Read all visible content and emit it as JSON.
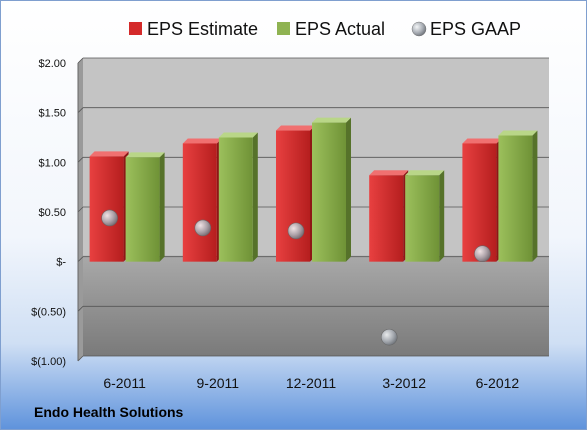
{
  "company": "Endo Health Solutions",
  "chart_data": {
    "type": "bar",
    "categories": [
      "6-2011",
      "9-2011",
      "12-2011",
      "3-2012",
      "6-2012"
    ],
    "series": [
      {
        "name": "EPS Estimate",
        "kind": "bar",
        "color": "#d42a2a",
        "values": [
          1.06,
          1.19,
          1.32,
          0.87,
          1.19
        ]
      },
      {
        "name": "EPS Actual",
        "kind": "bar",
        "color": "#8fb352",
        "values": [
          1.05,
          1.25,
          1.4,
          0.87,
          1.27
        ]
      },
      {
        "name": "EPS GAAP",
        "kind": "scatter",
        "color": "#b0b6bf",
        "values": [
          0.44,
          0.34,
          0.31,
          -0.76,
          0.08
        ]
      }
    ],
    "ylim": [
      -1.0,
      2.0
    ],
    "yticks": [
      {
        "value": 2.0,
        "label": "$2.00"
      },
      {
        "value": 1.5,
        "label": "$1.50"
      },
      {
        "value": 1.0,
        "label": "$1.00"
      },
      {
        "value": 0.5,
        "label": "$0.50"
      },
      {
        "value": 0.0,
        "label": "$-"
      },
      {
        "value": -0.5,
        "label": "$(0.50)"
      },
      {
        "value": -1.0,
        "label": "$(1.00)"
      }
    ],
    "grid": true,
    "legend": "top"
  }
}
